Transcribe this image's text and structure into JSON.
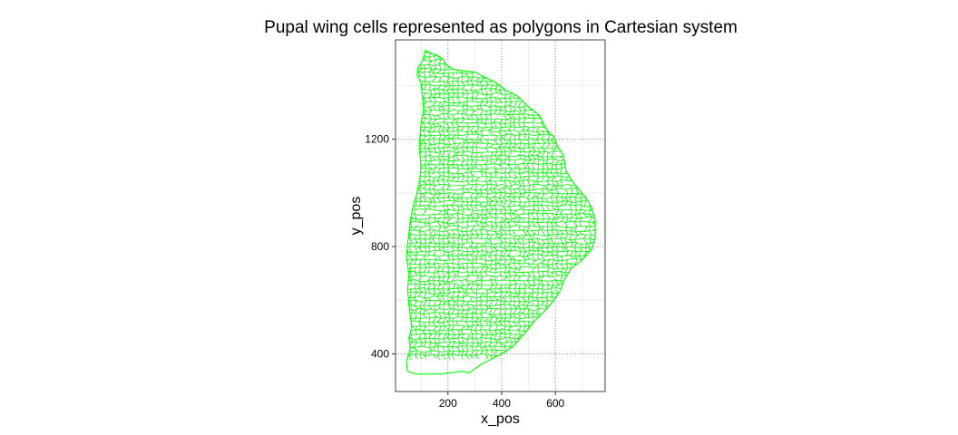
{
  "chart_data": {
    "type": "polygon-mesh",
    "title": "Pupal wing cells represented as polygons in Cartesian system",
    "xlabel": "x_pos",
    "ylabel": "y_pos",
    "xlim": [
      5,
      785
    ],
    "ylim": [
      260,
      1570
    ],
    "x_ticks": [
      200,
      400,
      600
    ],
    "y_ticks": [
      400,
      800,
      1200
    ],
    "grid": true,
    "minor_grid": true,
    "cell_color": "#00ff00",
    "outline": [
      [
        115,
        1530
      ],
      [
        165,
        1510
      ],
      [
        185,
        1495
      ],
      [
        190,
        1480
      ],
      [
        220,
        1460
      ],
      [
        300,
        1450
      ],
      [
        340,
        1430
      ],
      [
        380,
        1410
      ],
      [
        420,
        1380
      ],
      [
        460,
        1360
      ],
      [
        500,
        1320
      ],
      [
        540,
        1290
      ],
      [
        560,
        1250
      ],
      [
        575,
        1225
      ],
      [
        595,
        1210
      ],
      [
        605,
        1180
      ],
      [
        630,
        1140
      ],
      [
        640,
        1080
      ],
      [
        665,
        1040
      ],
      [
        690,
        1010
      ],
      [
        715,
        980
      ],
      [
        735,
        945
      ],
      [
        748,
        900
      ],
      [
        748,
        830
      ],
      [
        735,
        790
      ],
      [
        700,
        750
      ],
      [
        660,
        720
      ],
      [
        635,
        680
      ],
      [
        615,
        630
      ],
      [
        595,
        600
      ],
      [
        560,
        560
      ],
      [
        520,
        520
      ],
      [
        480,
        470
      ],
      [
        440,
        425
      ],
      [
        400,
        400
      ],
      [
        360,
        380
      ],
      [
        330,
        365
      ],
      [
        300,
        345
      ],
      [
        280,
        330
      ],
      [
        250,
        335
      ],
      [
        210,
        330
      ],
      [
        170,
        325
      ],
      [
        130,
        325
      ],
      [
        80,
        325
      ],
      [
        50,
        335
      ],
      [
        45,
        370
      ],
      [
        60,
        420
      ],
      [
        55,
        460
      ],
      [
        65,
        500
      ],
      [
        60,
        540
      ],
      [
        55,
        580
      ],
      [
        50,
        640
      ],
      [
        55,
        700
      ],
      [
        45,
        760
      ],
      [
        50,
        810
      ],
      [
        55,
        850
      ],
      [
        60,
        900
      ],
      [
        70,
        950
      ],
      [
        85,
        1000
      ],
      [
        95,
        1050
      ],
      [
        100,
        1100
      ],
      [
        95,
        1150
      ],
      [
        95,
        1200
      ],
      [
        100,
        1260
      ],
      [
        110,
        1310
      ],
      [
        105,
        1360
      ],
      [
        100,
        1410
      ],
      [
        85,
        1440
      ],
      [
        90,
        1470
      ],
      [
        105,
        1490
      ]
    ]
  }
}
